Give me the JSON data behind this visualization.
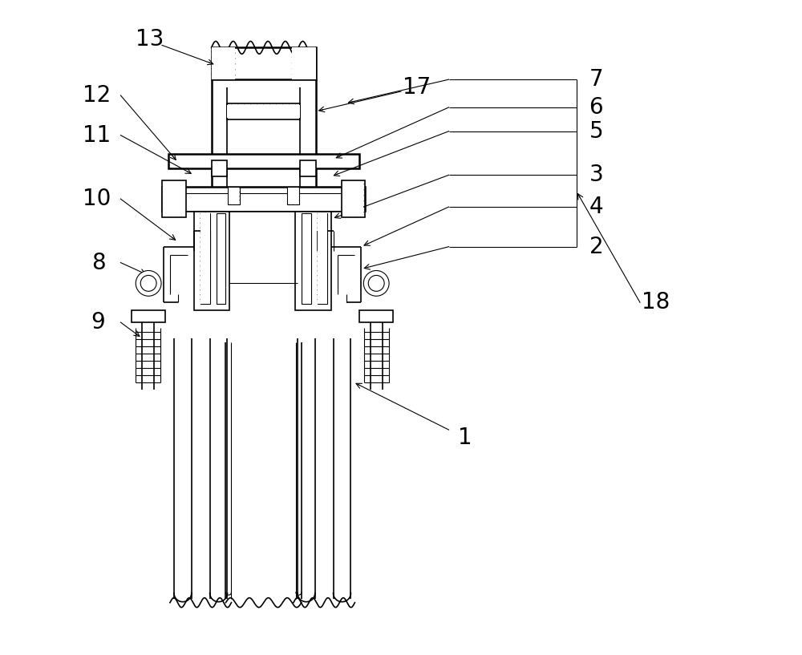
{
  "bg_color": "#ffffff",
  "line_color": "#000000",
  "figsize": [
    10.0,
    8.17
  ],
  "dpi": 100,
  "label_fontsize": 20,
  "title": ""
}
